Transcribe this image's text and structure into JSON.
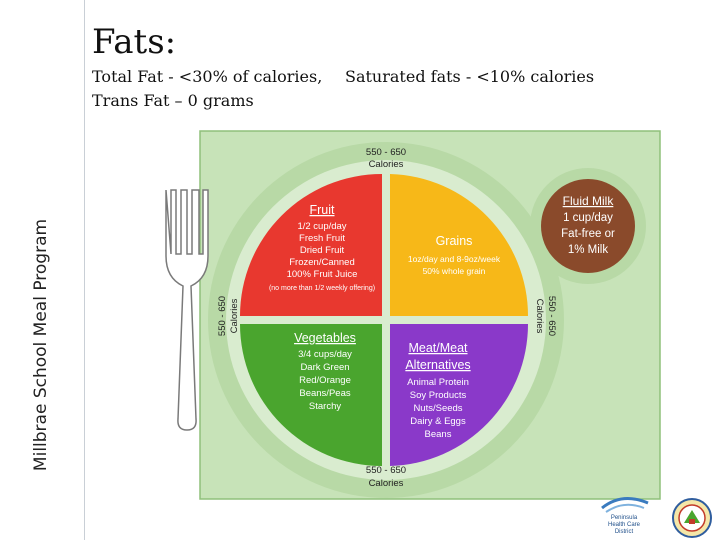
{
  "sidebar": {
    "vertical_text": "Millbrae School Meal Program"
  },
  "slide": {
    "title": "Fats:",
    "line1_left": "Total Fat - <30% of calories,",
    "line1_right": "Saturated fats - <10% calories",
    "line2": "Trans Fat – 0 grams"
  },
  "plate": {
    "calories_top": [
      "550 - 650",
      "Calories"
    ],
    "calories_left": [
      "550 - 650",
      "Calories"
    ],
    "calories_right": [
      "550 - 650",
      "Calories"
    ],
    "calories_bottom": [
      "550 - 650",
      "Calories"
    ],
    "fruit": {
      "title": "Fruit",
      "lines": [
        "1/2 cup/day",
        "Fresh Fruit",
        "Dried Fruit",
        "Frozen/Canned",
        "100% Fruit Juice"
      ],
      "note": "(no more than 1/2 weekly offering)"
    },
    "grains": {
      "title": "Grains",
      "lines": [
        "1oz/day and 8-9oz/week",
        "50% whole grain"
      ]
    },
    "vegetables": {
      "title": "Vegetables",
      "lines": [
        "3/4 cups/day",
        "Dark Green",
        "Red/Orange",
        "Beans/Peas",
        "Starchy"
      ]
    },
    "meat": {
      "title_lines": [
        "Meat/Meat",
        "Alternatives"
      ],
      "lines": [
        "Animal Protein",
        "Soy Products",
        "Nuts/Seeds",
        "Dairy & Eggs",
        "Beans"
      ]
    },
    "milk": {
      "title": "Fluid Milk",
      "lines": [
        "1 cup/day",
        "Fat-free or",
        "1% Milk"
      ]
    }
  },
  "logos": {
    "peninsula": [
      "Peninsula",
      "Health Care",
      "District"
    ]
  },
  "colors": {
    "fruit": "#e8382f",
    "grains": "#f7b818",
    "vegetables": "#4aa52e",
    "meat": "#8a39c9",
    "milk": "#8a4a2b",
    "plate_ring": "#d9eccf",
    "plate_outer": "#b8d9a6"
  }
}
